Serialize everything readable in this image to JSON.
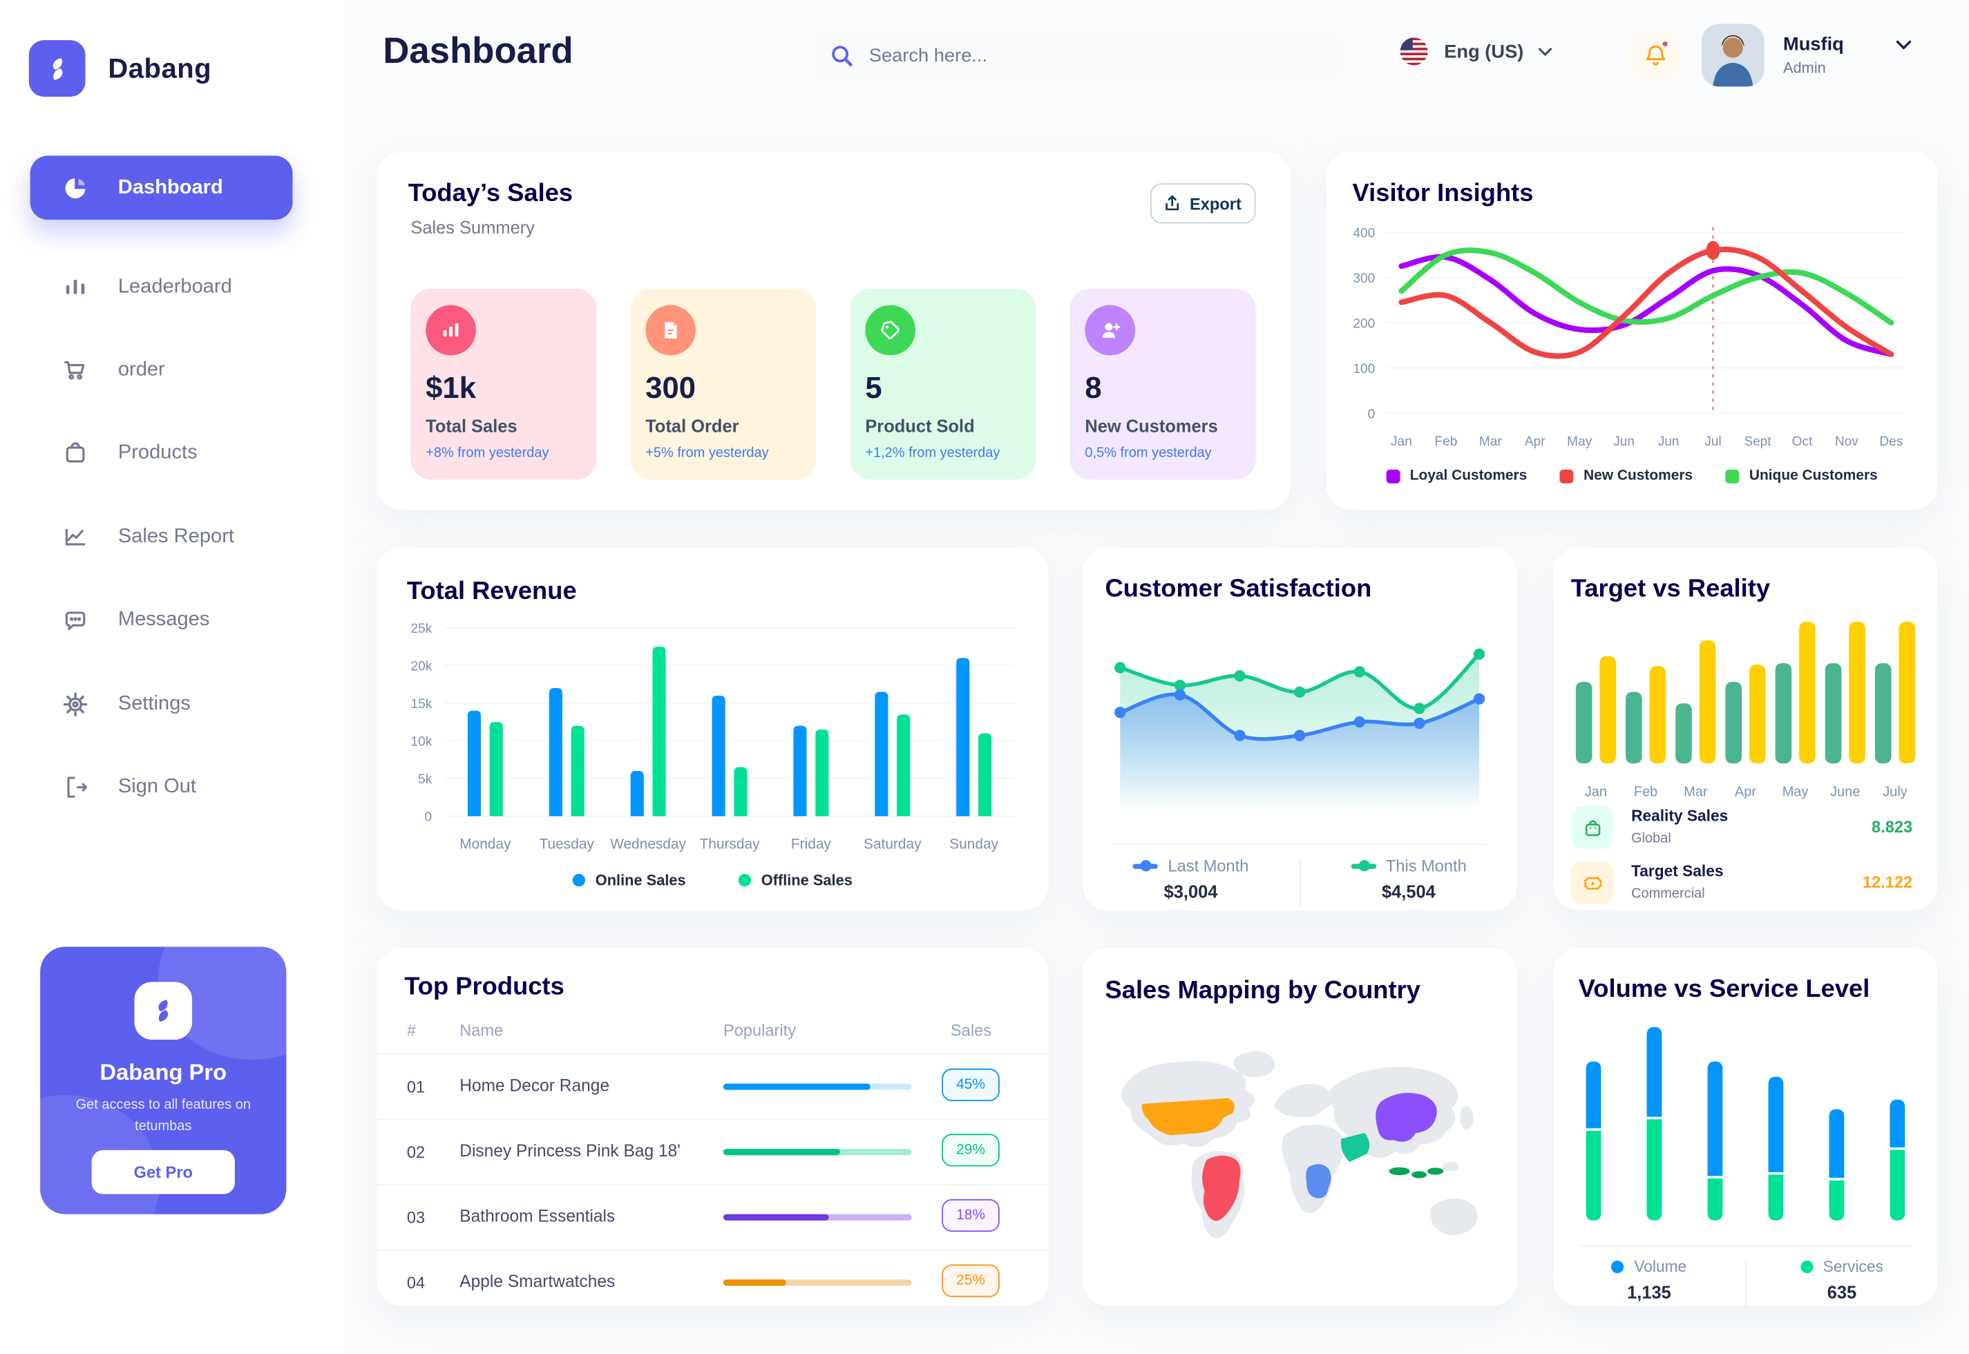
{
  "app": {
    "brand": "Dabang"
  },
  "header": {
    "title": "Dashboard",
    "search_placeholder": "Search here...",
    "language": "Eng (US)",
    "user_name": "Musfiq",
    "user_role": "Admin"
  },
  "sidebar": {
    "items": [
      {
        "label": "Dashboard"
      },
      {
        "label": "Leaderboard"
      },
      {
        "label": "order"
      },
      {
        "label": "Products"
      },
      {
        "label": "Sales Report"
      },
      {
        "label": "Messages"
      },
      {
        "label": "Settings"
      },
      {
        "label": "Sign Out"
      }
    ],
    "pro_card": {
      "title": "Dabang Pro",
      "description": "Get access to all features on tetumbas",
      "cta": "Get Pro"
    }
  },
  "todays_sales": {
    "title": "Today’s Sales",
    "subtitle": "Sales Summery",
    "export_label": "Export",
    "cards": [
      {
        "value": "$1k",
        "label": "Total Sales",
        "delta": "+8% from yesterday",
        "bg": "#FFE2E5",
        "icon_bg": "#FA5A7D",
        "icon": "bar-stats-icon"
      },
      {
        "value": "300",
        "label": "Total Order",
        "delta": "+5% from yesterday",
        "bg": "#FFF4DE",
        "icon_bg": "#FF947A",
        "icon": "file-icon"
      },
      {
        "value": "5",
        "label": "Product Sold",
        "delta": "+1,2% from yesterday",
        "bg": "#DCFCE7",
        "icon_bg": "#3CD856",
        "icon": "tag-icon"
      },
      {
        "value": "8",
        "label": "New Customers",
        "delta": "0,5% from yesterday",
        "bg": "#F3E8FF",
        "icon_bg": "#BF83FF",
        "icon": "user-plus-icon"
      }
    ]
  },
  "panels": {
    "visitor_insights": "Visitor Insights",
    "total_revenue": "Total Revenue",
    "customer_satisfaction": "Customer Satisfaction",
    "target_vs_reality": "Target vs Reality",
    "top_products": "Top Products",
    "sales_mapping": "Sales Mapping by Country",
    "volume_service": "Volume vs Service Level"
  },
  "chart_data": [
    {
      "id": "visitor_insights",
      "type": "line",
      "x": [
        "Jan",
        "Feb",
        "Mar",
        "Apr",
        "May",
        "Jun",
        "Jun",
        "Jul",
        "Sept",
        "Oct",
        "Nov",
        "Des"
      ],
      "y_ticks": [
        0,
        100,
        200,
        300,
        400
      ],
      "ylim": [
        0,
        400
      ],
      "grid": true,
      "legend_position": "bottom",
      "series": [
        {
          "name": "Loyal Customers",
          "color": "#A700FF",
          "values": [
            325,
            345,
            295,
            220,
            185,
            195,
            255,
            315,
            305,
            240,
            160,
            130
          ]
        },
        {
          "name": "New Customers",
          "color": "#EF4444",
          "values": [
            245,
            260,
            200,
            135,
            135,
            215,
            310,
            360,
            345,
            270,
            190,
            130
          ]
        },
        {
          "name": "Unique Customers",
          "color": "#3CD856",
          "values": [
            270,
            350,
            355,
            310,
            245,
            205,
            210,
            260,
            300,
            310,
            265,
            200
          ]
        }
      ],
      "marker": {
        "series": 1,
        "index": 7
      }
    },
    {
      "id": "total_revenue",
      "type": "bar",
      "categories": [
        "Monday",
        "Tuesday",
        "Wednesday",
        "Thursday",
        "Friday",
        "Saturday",
        "Sunday"
      ],
      "y_ticks": [
        "0",
        "5k",
        "10k",
        "15k",
        "20k",
        "25k"
      ],
      "ylim": [
        0,
        25000
      ],
      "grid": true,
      "legend_position": "bottom",
      "series": [
        {
          "name": "Online Sales",
          "color": "#0095FF",
          "values": [
            14000,
            17000,
            6000,
            16000,
            12000,
            16500,
            21000
          ]
        },
        {
          "name": "Offline Sales",
          "color": "#00E096",
          "values": [
            12500,
            12000,
            22500,
            6500,
            11500,
            13500,
            11000
          ]
        }
      ]
    },
    {
      "id": "customer_satisfaction",
      "type": "area",
      "ylim": [
        0,
        100
      ],
      "grid": false,
      "series": [
        {
          "name": "Last Month",
          "color": "#3B82F6",
          "total": "$3,004",
          "values": [
            45,
            58,
            28,
            28,
            38,
            37,
            55
          ]
        },
        {
          "name": "This Month",
          "color": "#16C98D",
          "total": "$4,504",
          "values": [
            78,
            65,
            72,
            60,
            75,
            48,
            88
          ]
        }
      ]
    },
    {
      "id": "target_vs_reality",
      "type": "bar",
      "categories": [
        "Jan",
        "Feb",
        "Mar",
        "Apr",
        "May",
        "June",
        "July"
      ],
      "ylim": [
        0,
        10
      ],
      "grid": false,
      "series": [
        {
          "name": "Reality Sales",
          "color": "#4AB58E",
          "values": [
            5.7,
            5.0,
            4.2,
            5.7,
            7.0,
            7.0,
            7.0
          ]
        },
        {
          "name": "Target Sales",
          "color": "#FFCF00",
          "values": [
            7.5,
            6.8,
            8.6,
            6.9,
            9.9,
            9.9,
            9.9
          ]
        }
      ],
      "legend": [
        {
          "label": "Reality Sales",
          "sub": "Global",
          "value": "8.823",
          "value_color": "#27AE60",
          "icon_bg": "#E2FFF3",
          "icon": "bag-icon"
        },
        {
          "label": "Target Sales",
          "sub": "Commercial",
          "value": "12.122",
          "value_color": "#FFA412",
          "icon_bg": "#FFF4DE",
          "icon": "ticket-icon"
        }
      ]
    },
    {
      "id": "volume_service",
      "type": "stacked-bar",
      "ylim": [
        0,
        100
      ],
      "grid": false,
      "series": [
        {
          "name": "Volume",
          "color": "#0095FF",
          "total": "1,135",
          "values": [
            35,
            47,
            60,
            50,
            36,
            25
          ]
        },
        {
          "name": "Services",
          "color": "#00E096",
          "total": "635",
          "values": [
            47,
            53,
            22,
            24,
            21,
            37
          ]
        }
      ]
    }
  ],
  "top_products": {
    "headers": [
      "#",
      "Name",
      "Popularity",
      "Sales"
    ],
    "rows": [
      {
        "num": "01",
        "name": "Home Decor Range",
        "popularity": 78,
        "sales": "45%",
        "color": "#0095FF",
        "track": "#CDE7FF",
        "badge_color": "#0095FF",
        "badge_bg": "#F0F9FF"
      },
      {
        "num": "02",
        "name": "Disney Princess Pink Bag 18'",
        "popularity": 62,
        "sales": "29%",
        "color": "#00C48C",
        "track": "#A5ECD0",
        "badge_color": "#00C48C",
        "badge_bg": "#F0FDF4"
      },
      {
        "num": "03",
        "name": "Bathroom Essentials",
        "popularity": 56,
        "sales": "18%",
        "color": "#6D3BE0",
        "track": "#C9B2F5",
        "badge_color": "#884DFF",
        "badge_bg": "#FBF5FF"
      },
      {
        "num": "04",
        "name": "Apple Smartwatches",
        "popularity": 33,
        "sales": "25%",
        "color": "#F09000",
        "track": "#F7D4A8",
        "badge_color": "#FF8F0D",
        "badge_bg": "#FFF7ED"
      }
    ]
  },
  "sales_map": {
    "countries": [
      {
        "name": "United States",
        "color": "#FFA412"
      },
      {
        "name": "Brazil",
        "color": "#F64E60"
      },
      {
        "name": "DR Congo",
        "color": "#5A8DEE"
      },
      {
        "name": "Saudi Arabia",
        "color": "#16C79A"
      },
      {
        "name": "China",
        "color": "#8950FC"
      },
      {
        "name": "Indonesia",
        "color": "#00A653"
      }
    ]
  }
}
